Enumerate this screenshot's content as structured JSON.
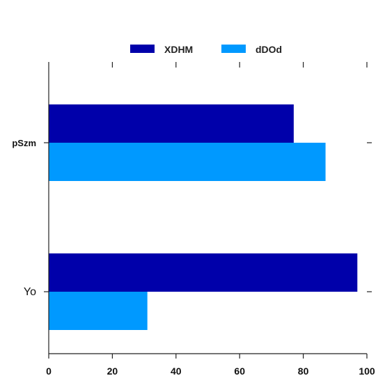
{
  "chart_data": {
    "type": "bar",
    "orientation": "horizontal",
    "categories": [
      "pSzm",
      "Yo"
    ],
    "series": [
      {
        "name": "XDHM",
        "color": "#0000aa",
        "values": [
          77,
          97
        ]
      },
      {
        "name": "dDOd",
        "color": "#0099ff",
        "values": [
          87,
          31
        ]
      }
    ],
    "xlim": [
      0,
      100
    ],
    "xticks": [
      0,
      20,
      40,
      60,
      80,
      100
    ],
    "grid": false,
    "legend": "top-center",
    "title": "",
    "xlabel": "",
    "ylabel": ""
  }
}
